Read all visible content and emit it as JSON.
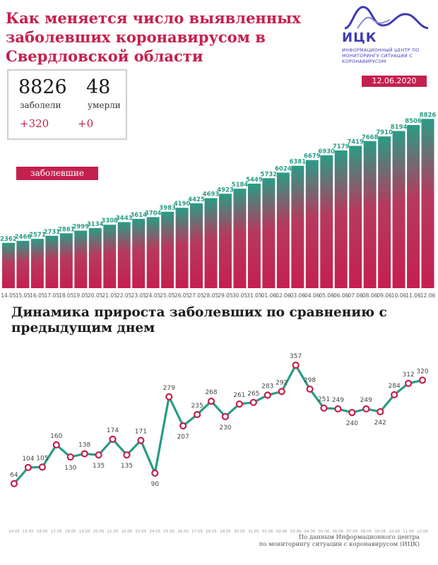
{
  "header": {
    "title": "Как меняется число выявленных заболевших коронавирусом в Свердловской области",
    "date": "12.06.2020"
  },
  "logo": {
    "name": "ИЦК",
    "subtitle": "Информационный центр по мониторингу ситуации с коронавирусом"
  },
  "stats": {
    "cases": "8826",
    "cases_label": "заболели",
    "cases_increment": "+320",
    "deaths": "48",
    "deaths_label": "умерли",
    "deaths_increment": "+0"
  },
  "colors": {
    "accent": "#c4204e",
    "bar_top": "#2a9c86",
    "line": "#2a9c86",
    "marker": "#c4204e"
  },
  "chart_data": [
    {
      "type": "bar",
      "legend_label": "заболевшие",
      "categories": [
        "14.05",
        "15.05",
        "16.05",
        "17.05",
        "18.05",
        "19.05",
        "20.05",
        "21.05",
        "22.05",
        "23.05",
        "24.05",
        "25.05",
        "26.05",
        "27.05",
        "28.05",
        "29.05",
        "30.05",
        "31.05",
        "01.06",
        "02.06",
        "03.06",
        "04.06",
        "05.06",
        "06.06",
        "07.06",
        "08.06",
        "09.06",
        "10.06",
        "11.06",
        "12.06"
      ],
      "values": [
        2362,
        2466,
        2571,
        2731,
        2861,
        2999,
        3134,
        3308,
        3443,
        3614,
        3704,
        3983,
        4190,
        4425,
        4693,
        4923,
        5184,
        5449,
        5732,
        6024,
        6381,
        6679,
        6930,
        7179,
        7419,
        7668,
        7910,
        8194,
        8506,
        8826
      ],
      "ylim": [
        0,
        9500
      ],
      "grid": false
    },
    {
      "type": "line",
      "title": "Динамика прироста заболевших по сравнению с предыдущим днем",
      "categories": [
        "14.05",
        "15.05",
        "16.05",
        "17.05",
        "18.05",
        "19.05",
        "20.05",
        "21.05",
        "22.05",
        "23.05",
        "24.05",
        "25.05",
        "26.05",
        "27.05",
        "28.05",
        "29.05",
        "30.05",
        "31.05",
        "01.06",
        "02.06",
        "03.06",
        "04.06",
        "05.06",
        "06.06",
        "07.06",
        "08.06",
        "09.06",
        "10.06",
        "11.06",
        "12.06"
      ],
      "values": [
        64,
        104,
        105,
        160,
        130,
        138,
        135,
        174,
        135,
        171,
        90,
        279,
        207,
        235,
        268,
        230,
        261,
        265,
        283,
        292,
        357,
        298,
        251,
        249,
        240,
        249,
        242,
        284,
        312,
        320
      ],
      "ylim": [
        20,
        380
      ],
      "grid": false
    }
  ],
  "source": {
    "line1": "По данным Информационного центра",
    "line2": "по мониторингу ситуации с коронавирусом (ИЦК)"
  }
}
